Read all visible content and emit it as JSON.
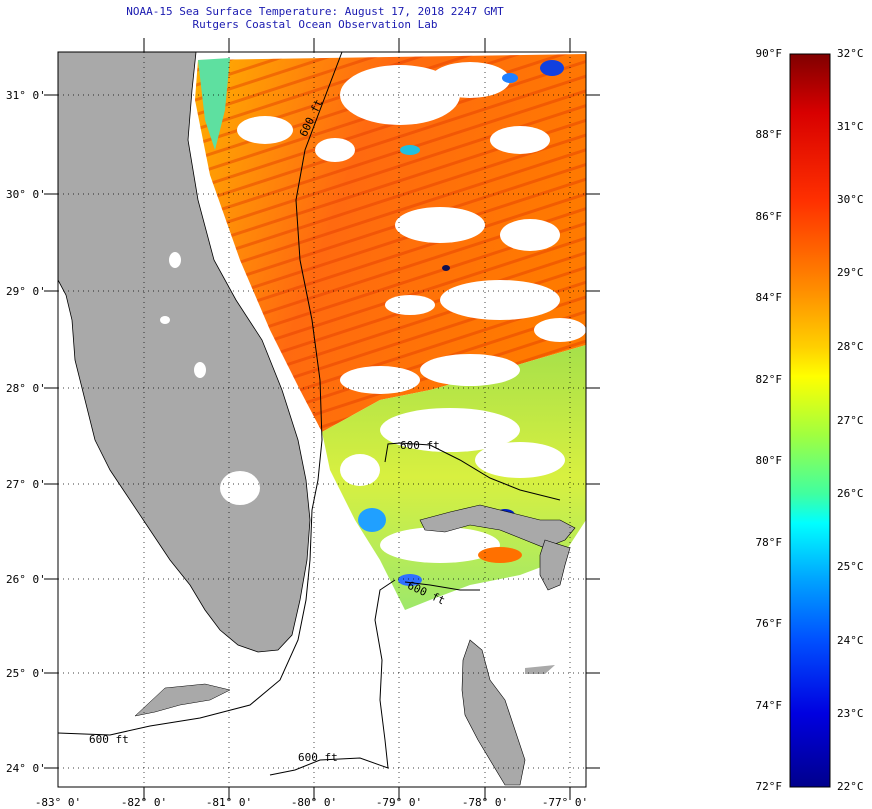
{
  "title": {
    "line1": "NOAA-15 Sea Surface Temperature:  August 17, 2018 2247 GMT",
    "line2": "Rutgers Coastal Ocean Observation Lab"
  },
  "map": {
    "lat_labels": [
      "31° 0'",
      "30° 0'",
      "29° 0'",
      "28° 0'",
      "27° 0'",
      "26° 0'",
      "25° 0'",
      "24° 0'"
    ],
    "lon_labels": [
      "-83° 0'",
      "-82° 0'",
      "-81° 0'",
      "-80° 0'",
      "-79° 0'",
      "-78° 0'",
      "-77° 0'"
    ],
    "isobath_label": "600 ft",
    "colors": {
      "land": "#a9a9a9",
      "missing": "#ffffff",
      "frame": "#000000"
    }
  },
  "colorbar": {
    "fahrenheit_ticks": [
      "90°F",
      "88°F",
      "86°F",
      "84°F",
      "82°F",
      "80°F",
      "78°F",
      "76°F",
      "74°F",
      "72°F"
    ],
    "celsius_ticks": [
      "32°C",
      "31°C",
      "30°C",
      "29°C",
      "28°C",
      "27°C",
      "26°C",
      "25°C",
      "24°C",
      "23°C",
      "22°C"
    ],
    "colors": [
      "#800000",
      "#d80000",
      "#ff3000",
      "#ff8c00",
      "#ffd000",
      "#ffff00",
      "#a0ff40",
      "#40ffa0",
      "#00ffff",
      "#00a0ff",
      "#0050ff",
      "#0000e0",
      "#00008c"
    ]
  }
}
